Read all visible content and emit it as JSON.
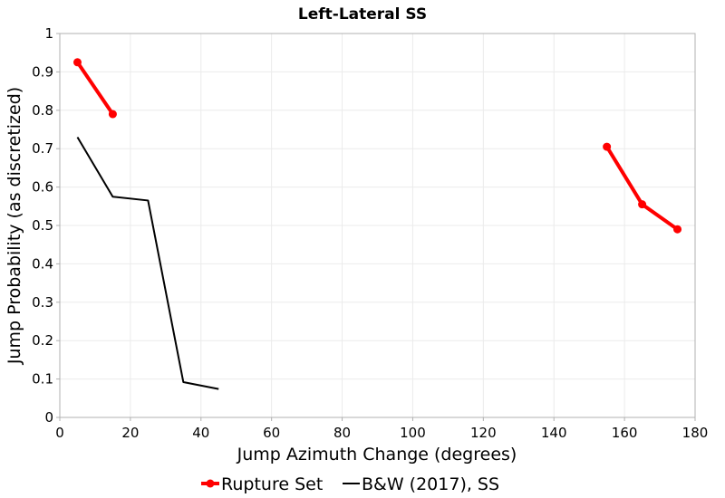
{
  "chart_data": {
    "type": "line",
    "title": "Left-Lateral SS",
    "xlabel": "Jump Azimuth Change (degrees)",
    "ylabel": "Jump Probability (as discretized)",
    "xlim": [
      0,
      180
    ],
    "ylim": [
      0,
      1
    ],
    "grid": true,
    "legend_position": "bottom-center",
    "x_ticks": [
      "0",
      "20",
      "40",
      "60",
      "80",
      "100",
      "120",
      "140",
      "160",
      "180"
    ],
    "y_ticks": [
      "0",
      "0.1",
      "0.2",
      "0.3",
      "0.4",
      "0.5",
      "0.6",
      "0.7",
      "0.8",
      "0.9",
      "1"
    ],
    "series": [
      {
        "name": "Rupture Set",
        "color": "#ff0000",
        "markers": true,
        "in_legend": true,
        "segments": [
          {
            "x": [
              5,
              15
            ],
            "y": [
              0.925,
              0.79
            ]
          },
          {
            "x": [
              155,
              165,
              175
            ],
            "y": [
              0.705,
              0.555,
              0.49
            ]
          }
        ]
      },
      {
        "name": "B&W (2017), SS",
        "color": "#000000",
        "markers": false,
        "in_legend": true,
        "segments": [
          {
            "x": [
              5,
              15,
              25,
              35,
              45
            ],
            "y": [
              0.73,
              0.575,
              0.565,
              0.092,
              0.074
            ]
          }
        ]
      }
    ],
    "legend": {
      "label_1": "Rupture Set",
      "label_2": "B&W (2017), SS"
    }
  }
}
